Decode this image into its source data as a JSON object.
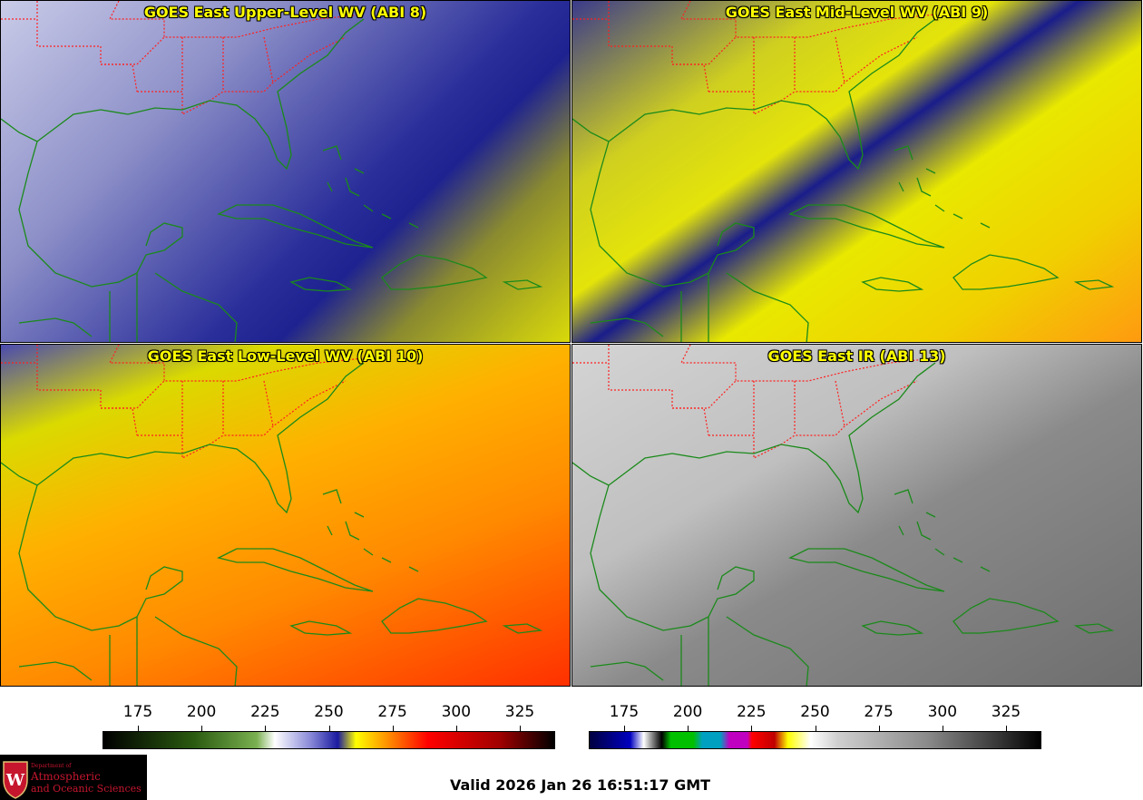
{
  "panels": [
    {
      "title": "GOES East Upper-Level WV (ABI 8)"
    },
    {
      "title": "GOES East Mid-Level WV (ABI 9)"
    },
    {
      "title": "GOES East Low-Level WV (ABI 10)"
    },
    {
      "title": "GOES East IR (ABI 13)"
    }
  ],
  "colorbars": {
    "wv": {
      "ticks": [
        "175",
        "200",
        "225",
        "250",
        "275",
        "300",
        "325"
      ]
    },
    "ir": {
      "ticks": [
        "175",
        "200",
        "225",
        "250",
        "275",
        "300",
        "325"
      ]
    }
  },
  "logo": {
    "line1": "Department of",
    "line2": "Atmospheric",
    "line3": "and Oceanic Sciences"
  },
  "valid_time": "Valid 2026 Jan 26 16:51:17 GMT",
  "colors": {
    "coastline": "#1a8a1a",
    "state_border": "#ff2020",
    "title": "#ffff00"
  }
}
